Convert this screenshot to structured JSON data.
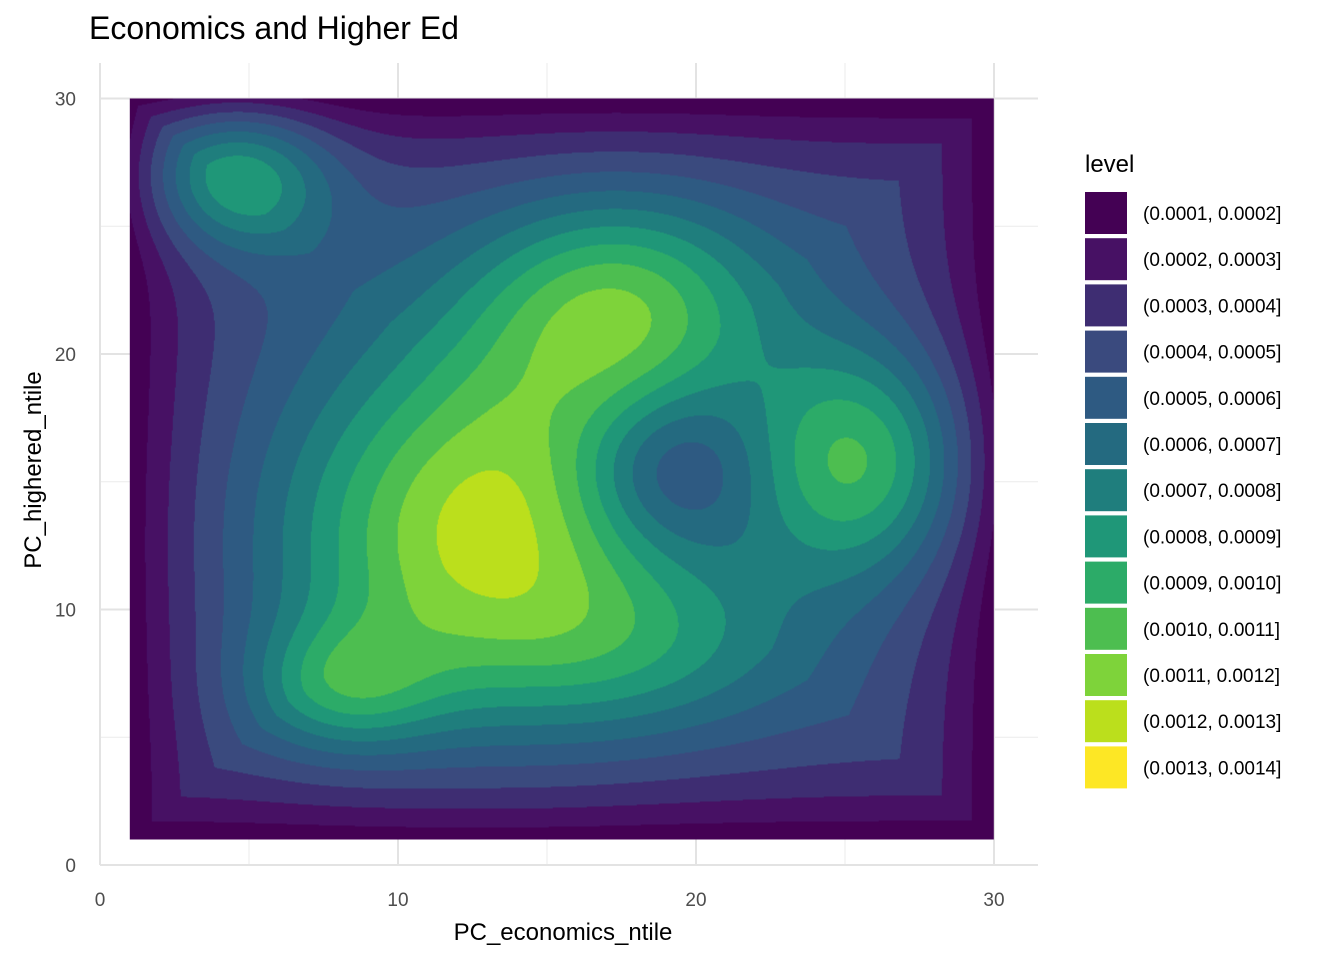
{
  "chart_data": {
    "type": "filled-contour",
    "title": "Economics and Higher Ed",
    "xlabel": "PC_economics_ntile",
    "ylabel": "PC_highered_ntile",
    "xlim": [
      0,
      31.5
    ],
    "ylim": [
      0,
      30.6
    ],
    "x_ticks": [
      0,
      10,
      20,
      30
    ],
    "y_ticks": [
      0,
      10,
      20,
      30
    ],
    "data_extent": {
      "x": [
        1,
        30
      ],
      "y": [
        1,
        30
      ]
    },
    "grid": true,
    "legend_title": "level",
    "legend_position": "right",
    "levels": [
      {
        "label": "(0.0001, 0.0002]",
        "color": "#440154"
      },
      {
        "label": "(0.0002, 0.0003]",
        "color": "#471164"
      },
      {
        "label": "(0.0003, 0.0004]",
        "color": "#3E2D72"
      },
      {
        "label": "(0.0004, 0.0005]",
        "color": "#3A4A7E"
      },
      {
        "label": "(0.0005, 0.0006]",
        "color": "#2E5A82"
      },
      {
        "label": "(0.0006, 0.0007]",
        "color": "#246A80"
      },
      {
        "label": "(0.0007, 0.0008]",
        "color": "#1F7E7D"
      },
      {
        "label": "(0.0008, 0.0009]",
        "color": "#1F9778"
      },
      {
        "label": "(0.0009, 0.0010]",
        "color": "#2CAB68"
      },
      {
        "label": "(0.0010, 0.0011]",
        "color": "#4DBE50"
      },
      {
        "label": "(0.0011, 0.0012]",
        "color": "#7ED33A"
      },
      {
        "label": "(0.0012, 0.0013]",
        "color": "#BBDF1C"
      },
      {
        "label": "(0.0013, 0.0014]",
        "color": "#FDE725"
      }
    ],
    "field": {
      "base": 0.00055,
      "edge_falloff": 0.00045,
      "peaks": [
        {
          "x": 12.5,
          "y": 12.5,
          "amp": 0.0006,
          "sx": 4.5,
          "sy": 4.5
        },
        {
          "x": 8.2,
          "y": 7.0,
          "amp": 0.00035,
          "sx": 2.2,
          "sy": 1.8
        },
        {
          "x": 17.5,
          "y": 22.0,
          "amp": 0.0005,
          "sx": 3.4,
          "sy": 3.0
        },
        {
          "x": 25.5,
          "y": 15.8,
          "amp": 0.00055,
          "sx": 2.6,
          "sy": 3.2
        },
        {
          "x": 4.6,
          "y": 27.0,
          "amp": 0.0005,
          "sx": 2.2,
          "sy": 2.0
        },
        {
          "x": 19.0,
          "y": 15.5,
          "amp": -0.0003,
          "sx": 2.2,
          "sy": 2.2
        },
        {
          "x": 18.0,
          "y": 8.5,
          "amp": 0.00025,
          "sx": 4.0,
          "sy": 2.5
        },
        {
          "x": 14.5,
          "y": 17.5,
          "amp": 0.0002,
          "sx": 4.0,
          "sy": 4.0
        }
      ]
    }
  }
}
